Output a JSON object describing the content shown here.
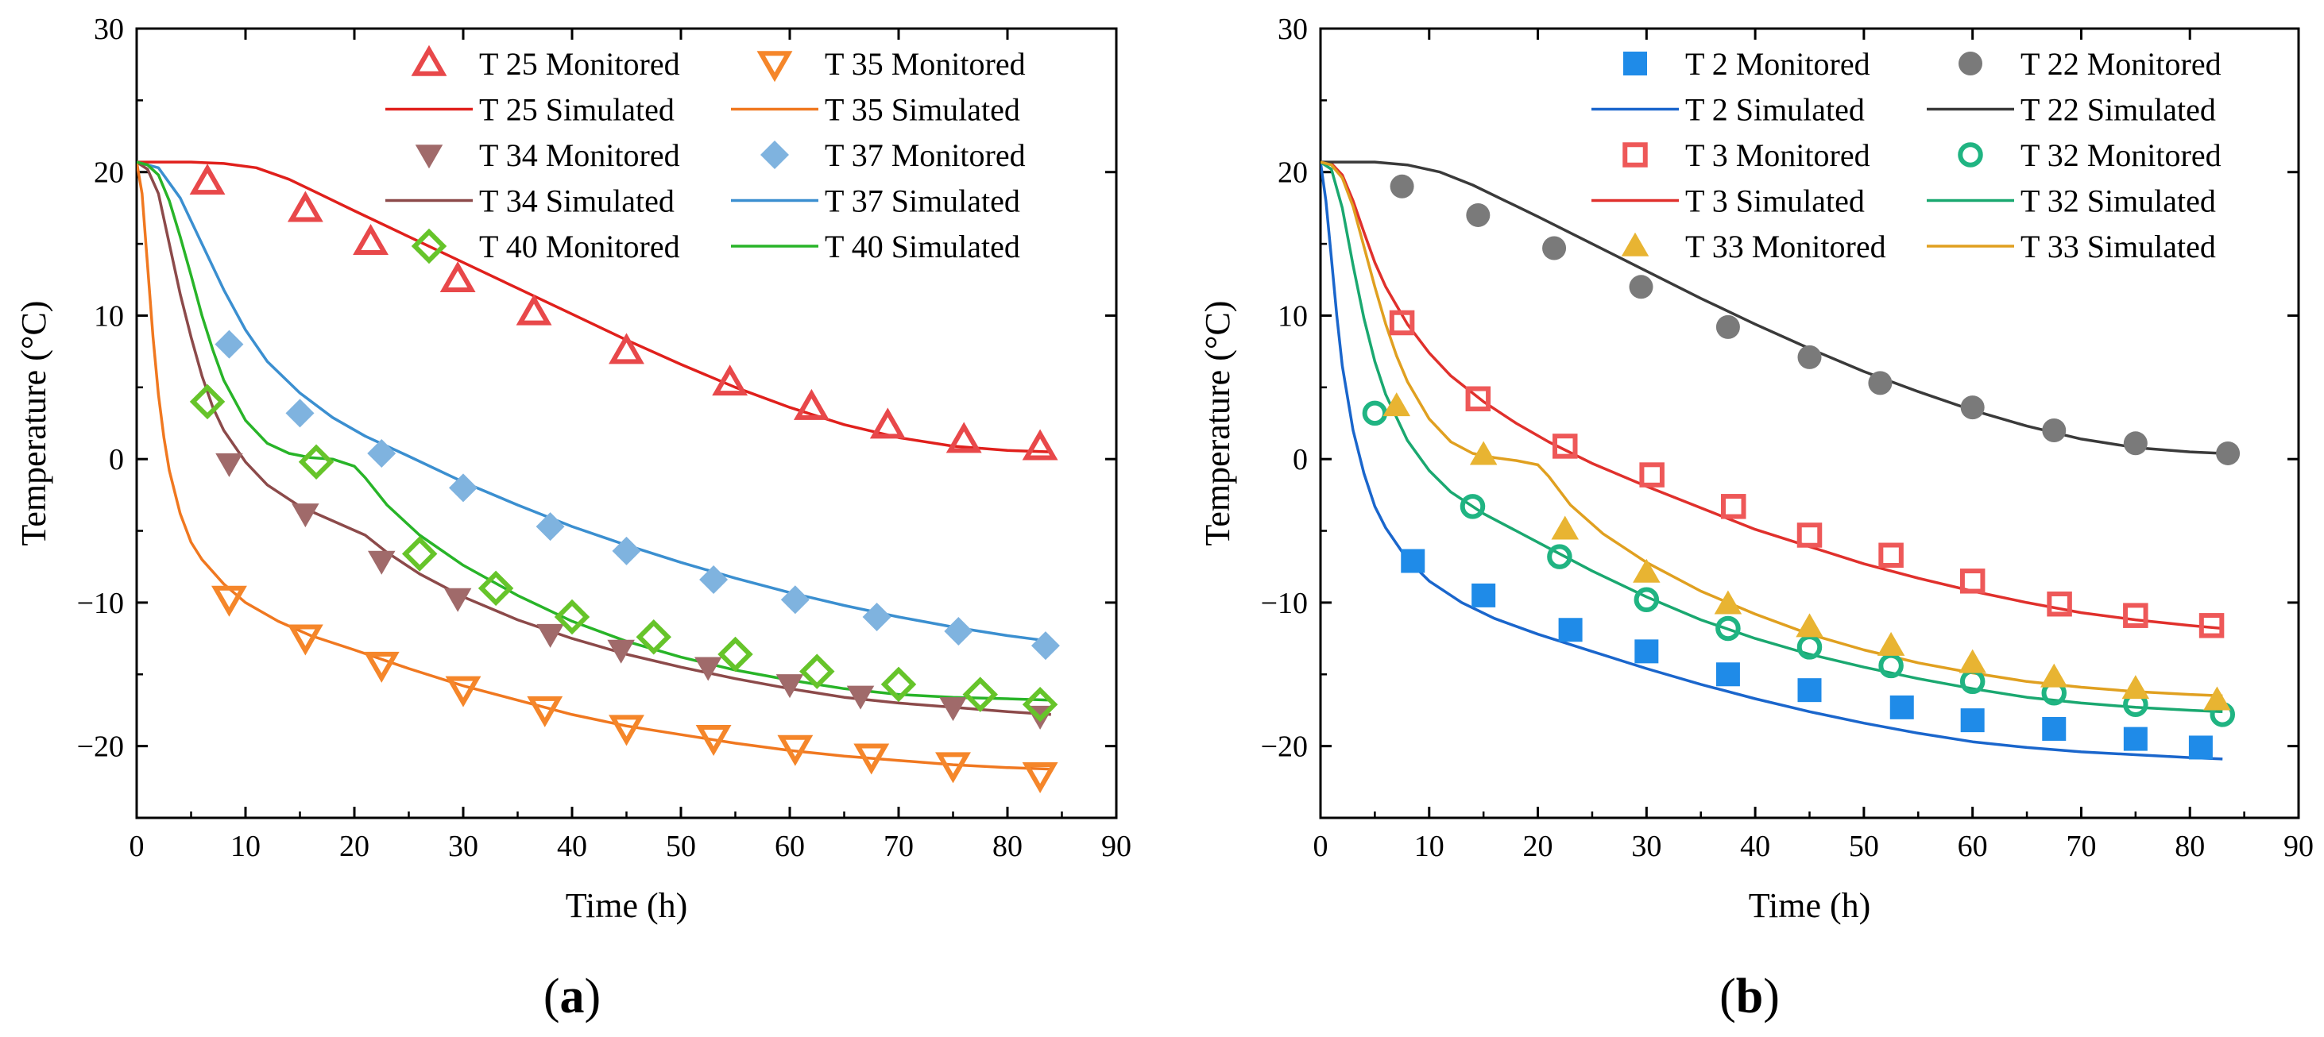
{
  "chart_data": [
    {
      "type": "line",
      "panel_label": "(a)",
      "panel_letter": "a",
      "xlabel": "Time (h)",
      "ylabel": "Temperature (°C)",
      "xlim": [
        0,
        90
      ],
      "ylim": [
        -25,
        30
      ],
      "xticks": [
        0,
        10,
        20,
        30,
        40,
        50,
        60,
        70,
        80,
        90
      ],
      "yticks": [
        -20,
        -10,
        0,
        10,
        20,
        30
      ],
      "ytick_labels": [
        "−20",
        "−10",
        "0",
        "10",
        "20",
        "30"
      ],
      "grid": false,
      "legend_position": "top-right",
      "series": [
        {
          "name": "T 25 Monitored",
          "kind": "marker",
          "marker": "triangle-up-open",
          "color": "#e8484a",
          "x": [
            6.5,
            15.5,
            21.5,
            29.5,
            36.5,
            45,
            54.5,
            62,
            69,
            76,
            83
          ],
          "y": [
            19.3,
            17.4,
            15.1,
            12.5,
            10.2,
            7.5,
            5.3,
            3.6,
            2.3,
            1.3,
            0.8
          ]
        },
        {
          "name": "T 25 Simulated",
          "kind": "line",
          "color": "#e0201c",
          "x": [
            0,
            2,
            5,
            8,
            11,
            14,
            17,
            20,
            25,
            30,
            35,
            40,
            45,
            50,
            55,
            60,
            65,
            70,
            75,
            80,
            84
          ],
          "y": [
            20.7,
            20.7,
            20.7,
            20.6,
            20.3,
            19.5,
            18.4,
            17.3,
            15.5,
            13.7,
            11.9,
            10.1,
            8.3,
            6.6,
            5.0,
            3.6,
            2.4,
            1.5,
            0.9,
            0.6,
            0.5
          ]
        },
        {
          "name": "T 34 Monitored",
          "kind": "marker",
          "marker": "triangle-down-filled",
          "color": "#a06a6a",
          "x": [
            8.5,
            15.5,
            22.5,
            29.5,
            38,
            44.5,
            52.5,
            60,
            66.5,
            75,
            83
          ],
          "y": [
            -0.3,
            -3.8,
            -7.1,
            -9.7,
            -12.2,
            -13.3,
            -14.5,
            -15.7,
            -16.5,
            -17.3,
            -17.9
          ]
        },
        {
          "name": "T 34 Simulated",
          "kind": "line",
          "color": "#8c4a4a",
          "x": [
            0,
            1,
            2,
            3,
            4,
            5,
            6,
            7,
            8,
            10,
            12,
            15,
            18,
            21,
            23,
            26,
            30,
            35,
            40,
            45,
            50,
            55,
            60,
            65,
            70,
            75,
            80,
            84
          ],
          "y": [
            20.7,
            20.2,
            18.5,
            15,
            11.5,
            8.5,
            5.8,
            3.6,
            2.0,
            -0.2,
            -1.8,
            -3.3,
            -4.3,
            -5.3,
            -6.5,
            -8.0,
            -9.6,
            -11.2,
            -12.5,
            -13.6,
            -14.5,
            -15.3,
            -16.0,
            -16.6,
            -17.0,
            -17.3,
            -17.6,
            -17.8
          ]
        },
        {
          "name": "T 37 Monitored",
          "kind": "marker",
          "marker": "diamond-filled",
          "color": "#7fb3df",
          "x": [
            8.5,
            15,
            22.5,
            30,
            38,
            45,
            53,
            60.5,
            68,
            75.5,
            83.5
          ],
          "y": [
            8.0,
            3.2,
            0.4,
            -2.0,
            -4.7,
            -6.4,
            -8.4,
            -9.8,
            -11.0,
            -12.0,
            -13.0
          ]
        },
        {
          "name": "T 37 Simulated",
          "kind": "line",
          "color": "#3b8fd0",
          "x": [
            0,
            2,
            4,
            6,
            8,
            10,
            12,
            15,
            18,
            21,
            25,
            30,
            35,
            40,
            45,
            50,
            55,
            60,
            65,
            70,
            75,
            80,
            84
          ],
          "y": [
            20.7,
            20.3,
            18.2,
            15.0,
            11.8,
            9.0,
            6.8,
            4.6,
            2.9,
            1.6,
            0.2,
            -1.6,
            -3.2,
            -4.7,
            -6.0,
            -7.2,
            -8.3,
            -9.3,
            -10.2,
            -11.0,
            -11.7,
            -12.3,
            -12.7
          ]
        },
        {
          "name": "T 35 Monitored",
          "kind": "marker",
          "marker": "triangle-down-open",
          "color": "#f5862a",
          "x": [
            8.5,
            15.5,
            22.5,
            30,
            37.5,
            45,
            53,
            60.5,
            67.5,
            75,
            83
          ],
          "y": [
            -9.7,
            -12.4,
            -14.3,
            -16.0,
            -17.4,
            -18.7,
            -19.4,
            -20.1,
            -20.7,
            -21.3,
            -22.0
          ]
        },
        {
          "name": "T 35 Simulated",
          "kind": "line",
          "color": "#f07820",
          "x": [
            0,
            0.5,
            1,
            1.5,
            2,
            2.5,
            3,
            4,
            5,
            6,
            8,
            10,
            13,
            16,
            20,
            25,
            30,
            35,
            40,
            45,
            50,
            55,
            60,
            65,
            70,
            75,
            80,
            84
          ],
          "y": [
            20.7,
            18.5,
            13.5,
            8.5,
            4.5,
            1.5,
            -0.8,
            -3.8,
            -5.8,
            -7.0,
            -8.7,
            -10.0,
            -11.3,
            -12.3,
            -13.3,
            -14.6,
            -15.8,
            -16.8,
            -17.8,
            -18.6,
            -19.2,
            -19.8,
            -20.3,
            -20.7,
            -21.0,
            -21.3,
            -21.5,
            -21.6
          ]
        },
        {
          "name": "T 40 Monitored",
          "kind": "marker",
          "marker": "diamond-open",
          "color": "#66c42a",
          "x": [
            6.5,
            16.5,
            26,
            33,
            40,
            47.5,
            55,
            62.5,
            70,
            77.5,
            83
          ],
          "y": [
            4.0,
            -0.2,
            -6.6,
            -9.0,
            -11.0,
            -12.4,
            -13.6,
            -14.8,
            -15.7,
            -16.4,
            -17.1
          ]
        },
        {
          "name": "T 40 Simulated",
          "kind": "line",
          "color": "#28b428",
          "x": [
            0,
            1,
            2,
            3,
            4,
            5,
            6,
            7,
            8,
            10,
            12,
            14,
            16,
            18,
            20,
            21,
            23,
            26,
            30,
            35,
            40,
            45,
            50,
            55,
            60,
            65,
            70,
            75,
            80,
            84
          ],
          "y": [
            20.7,
            20.5,
            19.8,
            18.0,
            15.5,
            12.8,
            10.0,
            7.6,
            5.5,
            2.7,
            1.1,
            0.4,
            0.1,
            0.0,
            -0.5,
            -1.3,
            -3.2,
            -5.3,
            -7.4,
            -9.5,
            -11.3,
            -12.7,
            -13.8,
            -14.7,
            -15.4,
            -16.0,
            -16.4,
            -16.6,
            -16.7,
            -16.8
          ]
        }
      ],
      "legend_order": [
        "T 25 Monitored",
        "T 35 Monitored",
        "T 25 Simulated",
        "T 35 Simulated",
        "T 34 Monitored",
        "T 37 Monitored",
        "T 34 Simulated",
        "T 37 Simulated",
        "T 40 Monitored",
        "T 40 Simulated"
      ]
    },
    {
      "type": "line",
      "panel_label": "(b)",
      "panel_letter": "b",
      "xlabel": "Time (h)",
      "ylabel": "Temperature (°C)",
      "xlim": [
        0,
        90
      ],
      "ylim": [
        -25,
        30
      ],
      "xticks": [
        0,
        10,
        20,
        30,
        40,
        50,
        60,
        70,
        80,
        90
      ],
      "yticks": [
        -20,
        -10,
        0,
        10,
        20,
        30
      ],
      "ytick_labels": [
        "−20",
        "−10",
        "0",
        "10",
        "20",
        "30"
      ],
      "grid": false,
      "legend_position": "top-right",
      "series": [
        {
          "name": "T 2 Monitored",
          "kind": "marker",
          "marker": "square-filled",
          "color": "#1f8be8",
          "x": [
            8.5,
            15,
            23,
            30,
            37.5,
            45,
            53.5,
            60,
            67.5,
            75,
            81
          ],
          "y": [
            -7.1,
            -9.5,
            -11.9,
            -13.4,
            -15.0,
            -16.1,
            -17.3,
            -18.2,
            -18.8,
            -19.5,
            -20.1
          ]
        },
        {
          "name": "T 2 Simulated",
          "kind": "line",
          "color": "#1a66cc",
          "x": [
            0,
            0.5,
            1,
            1.5,
            2,
            3,
            4,
            5,
            6,
            8,
            10,
            13,
            16,
            20,
            25,
            30,
            35,
            40,
            45,
            50,
            55,
            60,
            65,
            70,
            75,
            80,
            83
          ],
          "y": [
            20.7,
            18.0,
            14.0,
            10.0,
            6.5,
            2.0,
            -1.0,
            -3.3,
            -4.8,
            -7.0,
            -8.5,
            -10.0,
            -11.1,
            -12.2,
            -13.4,
            -14.6,
            -15.7,
            -16.7,
            -17.6,
            -18.4,
            -19.1,
            -19.7,
            -20.1,
            -20.4,
            -20.6,
            -20.8,
            -20.9
          ]
        },
        {
          "name": "T 3 Monitored",
          "kind": "marker",
          "marker": "square-open",
          "color": "#ee5858",
          "x": [
            7.5,
            14.5,
            22.5,
            30.5,
            38,
            45,
            52.5,
            60,
            68,
            75,
            82
          ],
          "y": [
            9.5,
            4.2,
            0.9,
            -1.1,
            -3.3,
            -5.3,
            -6.7,
            -8.5,
            -10.1,
            -10.9,
            -11.6
          ]
        },
        {
          "name": "T 3 Simulated",
          "kind": "line",
          "color": "#e0302c",
          "x": [
            0,
            1,
            2,
            3,
            4,
            5,
            6,
            8,
            10,
            12,
            15,
            18,
            21,
            25,
            30,
            35,
            40,
            45,
            50,
            55,
            60,
            65,
            70,
            75,
            80,
            83
          ],
          "y": [
            20.7,
            20.6,
            19.8,
            18.0,
            15.8,
            13.7,
            12.0,
            9.4,
            7.4,
            5.8,
            4.0,
            2.5,
            1.2,
            -0.3,
            -1.9,
            -3.4,
            -4.9,
            -6.1,
            -7.3,
            -8.3,
            -9.2,
            -10.0,
            -10.7,
            -11.2,
            -11.6,
            -11.8
          ]
        },
        {
          "name": "T 22 Monitored",
          "kind": "marker",
          "marker": "circle-filled",
          "color": "#7a7a7a",
          "x": [
            7.5,
            14.5,
            21.5,
            29.5,
            37.5,
            45,
            51.5,
            60,
            67.5,
            75,
            83.5
          ],
          "y": [
            19.0,
            17.0,
            14.7,
            12.0,
            9.2,
            7.1,
            5.3,
            3.6,
            2.0,
            1.1,
            0.4
          ]
        },
        {
          "name": "T 22 Simulated",
          "kind": "line",
          "color": "#3a3a3a",
          "x": [
            0,
            2,
            5,
            8,
            11,
            14,
            17,
            20,
            25,
            30,
            35,
            40,
            45,
            50,
            55,
            60,
            65,
            70,
            75,
            80,
            83
          ],
          "y": [
            20.7,
            20.7,
            20.7,
            20.5,
            20.0,
            19.1,
            18.0,
            16.9,
            15.0,
            13.1,
            11.2,
            9.4,
            7.7,
            6.1,
            4.7,
            3.4,
            2.3,
            1.4,
            0.8,
            0.5,
            0.4
          ]
        },
        {
          "name": "T 32 Monitored",
          "kind": "marker",
          "marker": "circle-open",
          "color": "#20b482",
          "x": [
            5,
            14,
            22,
            30,
            37.5,
            45,
            52.5,
            60,
            67.5,
            75,
            83
          ],
          "y": [
            3.2,
            -3.3,
            -6.8,
            -9.8,
            -11.8,
            -13.1,
            -14.4,
            -15.5,
            -16.3,
            -17.1,
            -17.8
          ]
        },
        {
          "name": "T 32 Simulated",
          "kind": "line",
          "color": "#1aa870",
          "x": [
            0,
            1,
            2,
            3,
            4,
            5,
            6,
            8,
            10,
            12,
            15,
            18,
            21,
            25,
            30,
            35,
            40,
            45,
            50,
            55,
            60,
            65,
            70,
            75,
            80,
            83
          ],
          "y": [
            20.7,
            20.2,
            17.5,
            13.5,
            9.8,
            6.8,
            4.5,
            1.3,
            -0.8,
            -2.3,
            -3.8,
            -5.0,
            -6.2,
            -7.8,
            -9.6,
            -11.2,
            -12.5,
            -13.6,
            -14.5,
            -15.3,
            -16.0,
            -16.6,
            -17.0,
            -17.3,
            -17.5,
            -17.6
          ]
        },
        {
          "name": "T 33 Monitored",
          "kind": "marker",
          "marker": "triangle-up-filled",
          "color": "#e8b432",
          "x": [
            7,
            15,
            22.5,
            30,
            37.5,
            45,
            52.5,
            60,
            67.5,
            75,
            82.5
          ],
          "y": [
            3.7,
            0.3,
            -4.9,
            -7.9,
            -10.1,
            -11.7,
            -13.0,
            -14.2,
            -15.2,
            -16.0,
            -16.8
          ]
        },
        {
          "name": "T 33 Simulated",
          "kind": "line",
          "color": "#e0a020",
          "x": [
            0,
            1,
            2,
            3,
            4,
            5,
            6,
            7,
            8,
            10,
            12,
            14,
            16,
            18,
            20,
            21,
            23,
            26,
            30,
            35,
            40,
            45,
            50,
            55,
            60,
            65,
            70,
            75,
            80,
            83
          ],
          "y": [
            20.7,
            20.5,
            19.6,
            17.6,
            14.8,
            12.0,
            9.4,
            7.2,
            5.4,
            2.8,
            1.2,
            0.4,
            0.1,
            -0.1,
            -0.4,
            -1.2,
            -3.2,
            -5.2,
            -7.2,
            -9.2,
            -10.8,
            -12.2,
            -13.3,
            -14.2,
            -14.9,
            -15.5,
            -15.9,
            -16.2,
            -16.4,
            -16.5
          ]
        }
      ],
      "legend_order": [
        "T 2 Monitored",
        "T 22 Monitored",
        "T 2 Simulated",
        "T 22 Simulated",
        "T 3 Monitored",
        "T 32 Monitored",
        "T 3 Simulated",
        "T 32 Simulated",
        "T 33 Monitored",
        "T 33 Simulated"
      ]
    }
  ]
}
